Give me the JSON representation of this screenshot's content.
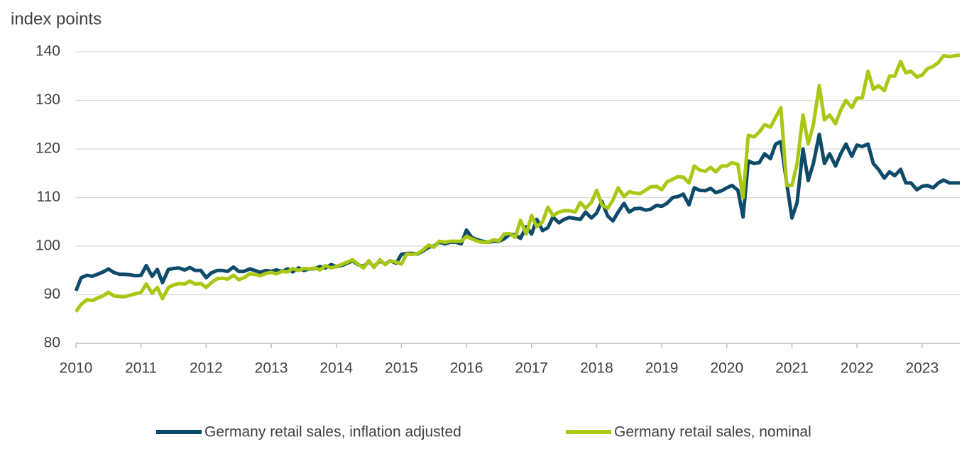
{
  "chart_data": {
    "type": "line",
    "y_label": "index points",
    "x": [
      2010,
      2010.08,
      2010.17,
      2010.25,
      2010.33,
      2010.42,
      2010.5,
      2010.58,
      2010.67,
      2010.75,
      2010.83,
      2010.92,
      2011,
      2011.08,
      2011.17,
      2011.25,
      2011.33,
      2011.42,
      2011.5,
      2011.58,
      2011.67,
      2011.75,
      2011.83,
      2011.92,
      2012,
      2012.08,
      2012.17,
      2012.25,
      2012.33,
      2012.42,
      2012.5,
      2012.58,
      2012.67,
      2012.75,
      2012.83,
      2012.92,
      2013,
      2013.08,
      2013.17,
      2013.25,
      2013.33,
      2013.42,
      2013.5,
      2013.58,
      2013.67,
      2013.75,
      2013.83,
      2013.92,
      2014,
      2014.08,
      2014.17,
      2014.25,
      2014.33,
      2014.42,
      2014.5,
      2014.58,
      2014.67,
      2014.75,
      2014.83,
      2014.92,
      2015,
      2015.08,
      2015.17,
      2015.25,
      2015.33,
      2015.42,
      2015.5,
      2015.58,
      2015.67,
      2015.75,
      2015.83,
      2015.92,
      2016,
      2016.08,
      2016.17,
      2016.25,
      2016.33,
      2016.42,
      2016.5,
      2016.58,
      2016.67,
      2016.75,
      2016.83,
      2016.92,
      2017,
      2017.08,
      2017.17,
      2017.25,
      2017.33,
      2017.42,
      2017.5,
      2017.58,
      2017.67,
      2017.75,
      2017.83,
      2017.92,
      2018,
      2018.08,
      2018.17,
      2018.25,
      2018.33,
      2018.42,
      2018.5,
      2018.58,
      2018.67,
      2018.75,
      2018.83,
      2018.92,
      2019,
      2019.08,
      2019.17,
      2019.25,
      2019.33,
      2019.42,
      2019.5,
      2019.58,
      2019.67,
      2019.75,
      2019.83,
      2019.92,
      2020,
      2020.08,
      2020.17,
      2020.25,
      2020.33,
      2020.42,
      2020.5,
      2020.58,
      2020.67,
      2020.75,
      2020.83,
      2020.92,
      2021,
      2021.08,
      2021.17,
      2021.25,
      2021.33,
      2021.42,
      2021.5,
      2021.58,
      2021.67,
      2021.75,
      2021.83,
      2021.92,
      2022,
      2022.08,
      2022.17,
      2022.25,
      2022.33,
      2022.42,
      2022.5,
      2022.58,
      2022.67,
      2022.75,
      2022.83,
      2022.92,
      2023,
      2023.08,
      2023.17,
      2023.25,
      2023.33,
      2023.42,
      2023.5,
      2023.58
    ],
    "series": [
      {
        "name": "Germany retail sales, inflation adjusted",
        "color": "#0e4a69",
        "values": [
          90.8,
          93.5,
          94,
          93.8,
          94.2,
          94.7,
          95.3,
          94.6,
          94.2,
          94.2,
          94.1,
          93.9,
          94,
          96,
          93.8,
          95.2,
          92.5,
          95.2,
          95.4,
          95.5,
          95.1,
          95.6,
          95,
          95,
          93.5,
          94.5,
          95,
          95,
          94.8,
          95.7,
          94.8,
          94.8,
          95.3,
          95,
          94.6,
          95,
          94.8,
          95.1,
          94.8,
          95.3,
          94.7,
          95.5,
          95,
          95.3,
          95.4,
          95.8,
          95.5,
          96.2,
          95.8,
          96,
          96.5,
          97,
          96.2,
          95.8,
          96.8,
          95.8,
          97,
          96.3,
          97,
          96.5,
          98.3,
          98.5,
          98.5,
          98.4,
          99,
          99.8,
          100,
          100.8,
          100.5,
          100.8,
          100.8,
          100.5,
          103.3,
          101.8,
          101.3,
          101,
          100.8,
          101,
          101,
          101.5,
          102.5,
          102.3,
          101.6,
          104,
          102.5,
          105.5,
          103.2,
          103.8,
          106,
          104.8,
          105.5,
          105.9,
          105.7,
          105.5,
          107,
          105.8,
          106.8,
          109.2,
          106.2,
          105.2,
          107,
          108.8,
          107,
          107.7,
          107.8,
          107.4,
          107.6,
          108.4,
          108.2,
          108.8,
          110,
          110.2,
          110.7,
          108.5,
          112,
          111.5,
          111.4,
          111.9,
          111,
          111.4,
          112,
          112.5,
          111.5,
          106,
          117.5,
          117,
          117.2,
          119,
          118,
          121,
          121.5,
          113,
          105.8,
          109,
          120,
          113.5,
          117,
          123,
          117,
          119,
          116.5,
          119,
          121,
          118.5,
          120.8,
          120.5,
          121,
          117,
          115.8,
          114,
          115.3,
          114.5,
          115.8,
          113,
          113,
          111.6,
          112.3,
          112.5,
          112,
          113,
          113.6,
          113,
          113,
          113
        ]
      },
      {
        "name": "Germany retail sales, nominal",
        "color": "#aac813",
        "values": [
          86.5,
          88,
          89,
          88.8,
          89.3,
          89.8,
          90.5,
          89.8,
          89.6,
          89.6,
          89.9,
          90.2,
          90.5,
          92.2,
          90.3,
          91.5,
          89.2,
          91.5,
          92,
          92.3,
          92.2,
          92.8,
          92.2,
          92.3,
          91.5,
          92.5,
          93.3,
          93.4,
          93.2,
          94,
          93.1,
          93.5,
          94.3,
          94.2,
          93.9,
          94.4,
          94.6,
          94.3,
          94.8,
          94.7,
          95.4,
          95,
          95.4,
          95.3,
          95.5,
          95.1,
          96,
          95.5,
          95.8,
          96.2,
          96.7,
          97.2,
          96.3,
          95.5,
          97,
          95.6,
          97.2,
          96.2,
          97,
          96.7,
          96.3,
          98.4,
          98.3,
          98.5,
          99.2,
          100.2,
          99.8,
          101,
          100.8,
          101,
          101,
          101,
          102,
          101.5,
          101,
          100.8,
          100.8,
          101.3,
          101.1,
          102.5,
          102.6,
          101.8,
          105.3,
          102.5,
          106.3,
          104,
          105,
          108,
          106.3,
          107,
          107.3,
          107.3,
          107,
          109,
          107.8,
          109,
          111.5,
          108.5,
          107.8,
          109.5,
          112,
          110.2,
          111.2,
          110.9,
          110.8,
          111.5,
          112.2,
          112.3,
          111.6,
          113.2,
          113.8,
          114.3,
          114.2,
          113,
          116.5,
          115.7,
          115.4,
          116.2,
          115.3,
          116.5,
          116.5,
          117.2,
          116.8,
          110,
          122.8,
          122.5,
          123.5,
          125,
          124.5,
          126.5,
          128.5,
          112.5,
          112.5,
          117,
          127,
          121,
          125,
          133,
          126,
          127,
          125.2,
          128,
          130,
          128.5,
          130.5,
          130.5,
          136,
          132.3,
          133,
          132,
          135,
          135,
          138,
          135.7,
          136,
          134.8,
          135.2,
          136.5,
          137,
          137.8,
          139.2,
          139,
          139.2,
          139.3
        ]
      }
    ],
    "xlim": [
      2010,
      2023.58
    ],
    "xticks": [
      2010,
      2011,
      2012,
      2013,
      2014,
      2015,
      2016,
      2017,
      2018,
      2019,
      2020,
      2021,
      2022,
      2023
    ],
    "ylim": [
      80,
      140
    ],
    "yticks": [
      80,
      90,
      100,
      110,
      120,
      130,
      140
    ],
    "grid": true,
    "legend": "bottom"
  }
}
